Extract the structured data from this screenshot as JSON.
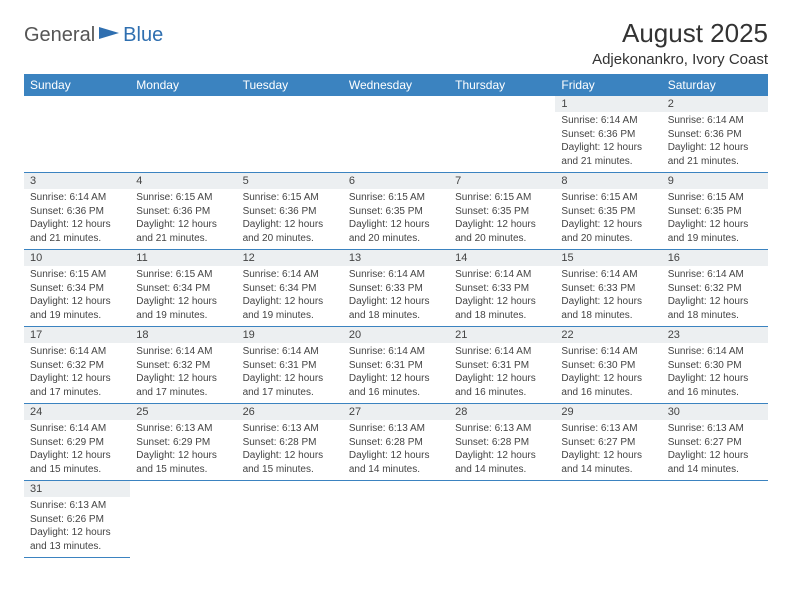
{
  "logo": {
    "part1": "General",
    "part2": "Blue"
  },
  "title": "August 2025",
  "location": "Adjekonankro, Ivory Coast",
  "colors": {
    "header_bg": "#3b83c0",
    "header_fg": "#ffffff",
    "daynum_bg": "#eceff1",
    "border": "#3b83c0",
    "logo_accent": "#2f6fb0"
  },
  "weekdays": [
    "Sunday",
    "Monday",
    "Tuesday",
    "Wednesday",
    "Thursday",
    "Friday",
    "Saturday"
  ],
  "weeks": [
    [
      null,
      null,
      null,
      null,
      null,
      {
        "n": "1",
        "sr": "Sunrise: 6:14 AM",
        "ss": "Sunset: 6:36 PM",
        "d1": "Daylight: 12 hours",
        "d2": "and 21 minutes."
      },
      {
        "n": "2",
        "sr": "Sunrise: 6:14 AM",
        "ss": "Sunset: 6:36 PM",
        "d1": "Daylight: 12 hours",
        "d2": "and 21 minutes."
      }
    ],
    [
      {
        "n": "3",
        "sr": "Sunrise: 6:14 AM",
        "ss": "Sunset: 6:36 PM",
        "d1": "Daylight: 12 hours",
        "d2": "and 21 minutes."
      },
      {
        "n": "4",
        "sr": "Sunrise: 6:15 AM",
        "ss": "Sunset: 6:36 PM",
        "d1": "Daylight: 12 hours",
        "d2": "and 21 minutes."
      },
      {
        "n": "5",
        "sr": "Sunrise: 6:15 AM",
        "ss": "Sunset: 6:36 PM",
        "d1": "Daylight: 12 hours",
        "d2": "and 20 minutes."
      },
      {
        "n": "6",
        "sr": "Sunrise: 6:15 AM",
        "ss": "Sunset: 6:35 PM",
        "d1": "Daylight: 12 hours",
        "d2": "and 20 minutes."
      },
      {
        "n": "7",
        "sr": "Sunrise: 6:15 AM",
        "ss": "Sunset: 6:35 PM",
        "d1": "Daylight: 12 hours",
        "d2": "and 20 minutes."
      },
      {
        "n": "8",
        "sr": "Sunrise: 6:15 AM",
        "ss": "Sunset: 6:35 PM",
        "d1": "Daylight: 12 hours",
        "d2": "and 20 minutes."
      },
      {
        "n": "9",
        "sr": "Sunrise: 6:15 AM",
        "ss": "Sunset: 6:35 PM",
        "d1": "Daylight: 12 hours",
        "d2": "and 19 minutes."
      }
    ],
    [
      {
        "n": "10",
        "sr": "Sunrise: 6:15 AM",
        "ss": "Sunset: 6:34 PM",
        "d1": "Daylight: 12 hours",
        "d2": "and 19 minutes."
      },
      {
        "n": "11",
        "sr": "Sunrise: 6:15 AM",
        "ss": "Sunset: 6:34 PM",
        "d1": "Daylight: 12 hours",
        "d2": "and 19 minutes."
      },
      {
        "n": "12",
        "sr": "Sunrise: 6:14 AM",
        "ss": "Sunset: 6:34 PM",
        "d1": "Daylight: 12 hours",
        "d2": "and 19 minutes."
      },
      {
        "n": "13",
        "sr": "Sunrise: 6:14 AM",
        "ss": "Sunset: 6:33 PM",
        "d1": "Daylight: 12 hours",
        "d2": "and 18 minutes."
      },
      {
        "n": "14",
        "sr": "Sunrise: 6:14 AM",
        "ss": "Sunset: 6:33 PM",
        "d1": "Daylight: 12 hours",
        "d2": "and 18 minutes."
      },
      {
        "n": "15",
        "sr": "Sunrise: 6:14 AM",
        "ss": "Sunset: 6:33 PM",
        "d1": "Daylight: 12 hours",
        "d2": "and 18 minutes."
      },
      {
        "n": "16",
        "sr": "Sunrise: 6:14 AM",
        "ss": "Sunset: 6:32 PM",
        "d1": "Daylight: 12 hours",
        "d2": "and 18 minutes."
      }
    ],
    [
      {
        "n": "17",
        "sr": "Sunrise: 6:14 AM",
        "ss": "Sunset: 6:32 PM",
        "d1": "Daylight: 12 hours",
        "d2": "and 17 minutes."
      },
      {
        "n": "18",
        "sr": "Sunrise: 6:14 AM",
        "ss": "Sunset: 6:32 PM",
        "d1": "Daylight: 12 hours",
        "d2": "and 17 minutes."
      },
      {
        "n": "19",
        "sr": "Sunrise: 6:14 AM",
        "ss": "Sunset: 6:31 PM",
        "d1": "Daylight: 12 hours",
        "d2": "and 17 minutes."
      },
      {
        "n": "20",
        "sr": "Sunrise: 6:14 AM",
        "ss": "Sunset: 6:31 PM",
        "d1": "Daylight: 12 hours",
        "d2": "and 16 minutes."
      },
      {
        "n": "21",
        "sr": "Sunrise: 6:14 AM",
        "ss": "Sunset: 6:31 PM",
        "d1": "Daylight: 12 hours",
        "d2": "and 16 minutes."
      },
      {
        "n": "22",
        "sr": "Sunrise: 6:14 AM",
        "ss": "Sunset: 6:30 PM",
        "d1": "Daylight: 12 hours",
        "d2": "and 16 minutes."
      },
      {
        "n": "23",
        "sr": "Sunrise: 6:14 AM",
        "ss": "Sunset: 6:30 PM",
        "d1": "Daylight: 12 hours",
        "d2": "and 16 minutes."
      }
    ],
    [
      {
        "n": "24",
        "sr": "Sunrise: 6:14 AM",
        "ss": "Sunset: 6:29 PM",
        "d1": "Daylight: 12 hours",
        "d2": "and 15 minutes."
      },
      {
        "n": "25",
        "sr": "Sunrise: 6:13 AM",
        "ss": "Sunset: 6:29 PM",
        "d1": "Daylight: 12 hours",
        "d2": "and 15 minutes."
      },
      {
        "n": "26",
        "sr": "Sunrise: 6:13 AM",
        "ss": "Sunset: 6:28 PM",
        "d1": "Daylight: 12 hours",
        "d2": "and 15 minutes."
      },
      {
        "n": "27",
        "sr": "Sunrise: 6:13 AM",
        "ss": "Sunset: 6:28 PM",
        "d1": "Daylight: 12 hours",
        "d2": "and 14 minutes."
      },
      {
        "n": "28",
        "sr": "Sunrise: 6:13 AM",
        "ss": "Sunset: 6:28 PM",
        "d1": "Daylight: 12 hours",
        "d2": "and 14 minutes."
      },
      {
        "n": "29",
        "sr": "Sunrise: 6:13 AM",
        "ss": "Sunset: 6:27 PM",
        "d1": "Daylight: 12 hours",
        "d2": "and 14 minutes."
      },
      {
        "n": "30",
        "sr": "Sunrise: 6:13 AM",
        "ss": "Sunset: 6:27 PM",
        "d1": "Daylight: 12 hours",
        "d2": "and 14 minutes."
      }
    ],
    [
      {
        "n": "31",
        "sr": "Sunrise: 6:13 AM",
        "ss": "Sunset: 6:26 PM",
        "d1": "Daylight: 12 hours",
        "d2": "and 13 minutes."
      },
      null,
      null,
      null,
      null,
      null,
      null
    ]
  ]
}
